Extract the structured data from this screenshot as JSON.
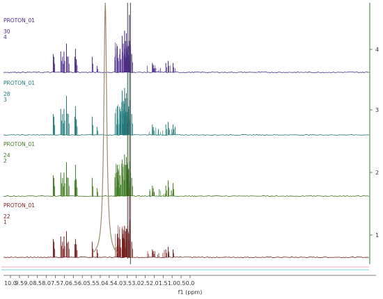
{
  "chart_data": {
    "type": "line",
    "title": "",
    "xlabel": "f1 (ppm)",
    "ylabel": "",
    "xlim": [
      10.2,
      -0.05
    ],
    "x_ticks": [
      "10.0",
      "9.5",
      "9.0",
      "8.5",
      "8.0",
      "7.5",
      "7.0",
      "6.5",
      "6.0",
      "5.5",
      "5.0",
      "4.5",
      "4.0",
      "3.5",
      "3.0",
      "2.5",
      "2.0",
      "1.5",
      "1.0",
      "0.5",
      "0.0"
    ],
    "side_ticks": [
      "1",
      "2",
      "3",
      "4"
    ],
    "grid": false,
    "series": [
      {
        "labels": [
          "PROTON_01",
          "22",
          "1"
        ],
        "color": "#7a1f1f",
        "peaks": [
          {
            "x": 7.62,
            "h": 0.35
          },
          {
            "x": 7.58,
            "h": 0.3
          },
          {
            "x": 7.2,
            "h": 0.4
          },
          {
            "x": 7.1,
            "h": 0.3
          },
          {
            "x": 7.02,
            "h": 0.4
          },
          {
            "x": 6.88,
            "h": 0.5
          },
          {
            "x": 6.78,
            "h": 0.3
          },
          {
            "x": 6.42,
            "h": 0.25
          },
          {
            "x": 6.38,
            "h": 0.35
          },
          {
            "x": 6.33,
            "h": 0.25
          },
          {
            "x": 5.45,
            "h": 0.3
          },
          {
            "x": 5.18,
            "h": 0.15
          },
          {
            "x": 4.05,
            "h": 0.45
          },
          {
            "x": 3.9,
            "h": 0.35
          },
          {
            "x": 3.78,
            "h": 0.55
          },
          {
            "x": 3.72,
            "h": 0.45
          },
          {
            "x": 3.65,
            "h": 0.6
          },
          {
            "x": 3.6,
            "h": 0.5
          },
          {
            "x": 3.55,
            "h": 0.55
          },
          {
            "x": 3.48,
            "h": 0.6
          },
          {
            "x": 3.42,
            "h": 0.45
          },
          {
            "x": 3.38,
            "h": 1.3
          },
          {
            "x": 3.25,
            "h": 0.3
          },
          {
            "x": 2.1,
            "h": 0.15
          },
          {
            "x": 2.05,
            "h": 0.12
          },
          {
            "x": 1.35,
            "h": 0.15
          },
          {
            "x": 1.22,
            "h": 0.2
          },
          {
            "x": 0.95,
            "h": 0.15
          }
        ]
      },
      {
        "labels": [
          "PROTON_01",
          "24",
          "2"
        ],
        "color": "#3d7a1f",
        "peaks": [
          {
            "x": 7.62,
            "h": 0.4
          },
          {
            "x": 7.58,
            "h": 0.35
          },
          {
            "x": 7.2,
            "h": 0.45
          },
          {
            "x": 7.1,
            "h": 0.35
          },
          {
            "x": 7.02,
            "h": 0.45
          },
          {
            "x": 6.88,
            "h": 0.65
          },
          {
            "x": 6.78,
            "h": 0.35
          },
          {
            "x": 6.42,
            "h": 0.3
          },
          {
            "x": 6.38,
            "h": 0.6
          },
          {
            "x": 6.33,
            "h": 0.3
          },
          {
            "x": 5.45,
            "h": 0.35
          },
          {
            "x": 5.18,
            "h": 0.15
          },
          {
            "x": 4.05,
            "h": 0.6
          },
          {
            "x": 3.9,
            "h": 0.4
          },
          {
            "x": 3.78,
            "h": 0.7
          },
          {
            "x": 3.72,
            "h": 0.55
          },
          {
            "x": 3.65,
            "h": 0.8
          },
          {
            "x": 3.6,
            "h": 0.6
          },
          {
            "x": 3.55,
            "h": 0.75
          },
          {
            "x": 3.48,
            "h": 0.65
          },
          {
            "x": 3.42,
            "h": 0.5
          },
          {
            "x": 3.38,
            "h": 1.2
          },
          {
            "x": 3.25,
            "h": 0.35
          },
          {
            "x": 2.1,
            "h": 0.2
          },
          {
            "x": 2.05,
            "h": 0.15
          },
          {
            "x": 1.35,
            "h": 0.2
          },
          {
            "x": 1.22,
            "h": 0.3
          },
          {
            "x": 0.95,
            "h": 0.25
          }
        ]
      },
      {
        "labels": [
          "PROTON_01",
          "28",
          "3"
        ],
        "color": "#1f7a7a",
        "peaks": [
          {
            "x": 7.62,
            "h": 0.4
          },
          {
            "x": 7.58,
            "h": 0.35
          },
          {
            "x": 7.2,
            "h": 0.5
          },
          {
            "x": 7.1,
            "h": 0.4
          },
          {
            "x": 7.02,
            "h": 0.5
          },
          {
            "x": 6.88,
            "h": 0.75
          },
          {
            "x": 6.78,
            "h": 0.4
          },
          {
            "x": 6.42,
            "h": 0.35
          },
          {
            "x": 6.38,
            "h": 0.55
          },
          {
            "x": 6.33,
            "h": 0.3
          },
          {
            "x": 5.45,
            "h": 0.35
          },
          {
            "x": 5.18,
            "h": 0.15
          },
          {
            "x": 4.05,
            "h": 0.55
          },
          {
            "x": 3.9,
            "h": 0.5
          },
          {
            "x": 3.78,
            "h": 0.85
          },
          {
            "x": 3.72,
            "h": 0.65
          },
          {
            "x": 3.65,
            "h": 0.9
          },
          {
            "x": 3.6,
            "h": 0.7
          },
          {
            "x": 3.55,
            "h": 0.8
          },
          {
            "x": 3.48,
            "h": 0.7
          },
          {
            "x": 3.42,
            "h": 0.55
          },
          {
            "x": 3.38,
            "h": 1.2
          },
          {
            "x": 3.25,
            "h": 0.4
          },
          {
            "x": 2.1,
            "h": 0.2
          },
          {
            "x": 2.05,
            "h": 0.15
          },
          {
            "x": 1.35,
            "h": 0.2
          },
          {
            "x": 1.22,
            "h": 0.25
          },
          {
            "x": 0.95,
            "h": 0.2
          }
        ]
      },
      {
        "labels": [
          "PROTON_01",
          "30",
          "4"
        ],
        "color": "#4a2a8a",
        "peaks": [
          {
            "x": 7.62,
            "h": 0.35
          },
          {
            "x": 7.58,
            "h": 0.3
          },
          {
            "x": 7.2,
            "h": 0.4
          },
          {
            "x": 7.1,
            "h": 0.3
          },
          {
            "x": 7.02,
            "h": 0.4
          },
          {
            "x": 6.88,
            "h": 0.55
          },
          {
            "x": 6.78,
            "h": 0.3
          },
          {
            "x": 6.42,
            "h": 0.3
          },
          {
            "x": 6.38,
            "h": 0.45
          },
          {
            "x": 6.33,
            "h": 0.25
          },
          {
            "x": 5.45,
            "h": 0.3
          },
          {
            "x": 5.18,
            "h": 0.12
          },
          {
            "x": 4.05,
            "h": 0.5
          },
          {
            "x": 3.9,
            "h": 0.45
          },
          {
            "x": 3.78,
            "h": 0.7
          },
          {
            "x": 3.72,
            "h": 0.55
          },
          {
            "x": 3.65,
            "h": 0.8
          },
          {
            "x": 3.6,
            "h": 0.6
          },
          {
            "x": 3.55,
            "h": 0.75
          },
          {
            "x": 3.48,
            "h": 0.6
          },
          {
            "x": 3.42,
            "h": 0.5
          },
          {
            "x": 3.38,
            "h": 1.1
          },
          {
            "x": 3.25,
            "h": 0.35
          },
          {
            "x": 2.1,
            "h": 0.18
          },
          {
            "x": 2.05,
            "h": 0.14
          },
          {
            "x": 1.35,
            "h": 0.18
          },
          {
            "x": 1.22,
            "h": 0.22
          },
          {
            "x": 0.95,
            "h": 0.18
          }
        ]
      }
    ],
    "water_peak": {
      "x": 4.72,
      "color": "#9a8a6a"
    }
  }
}
